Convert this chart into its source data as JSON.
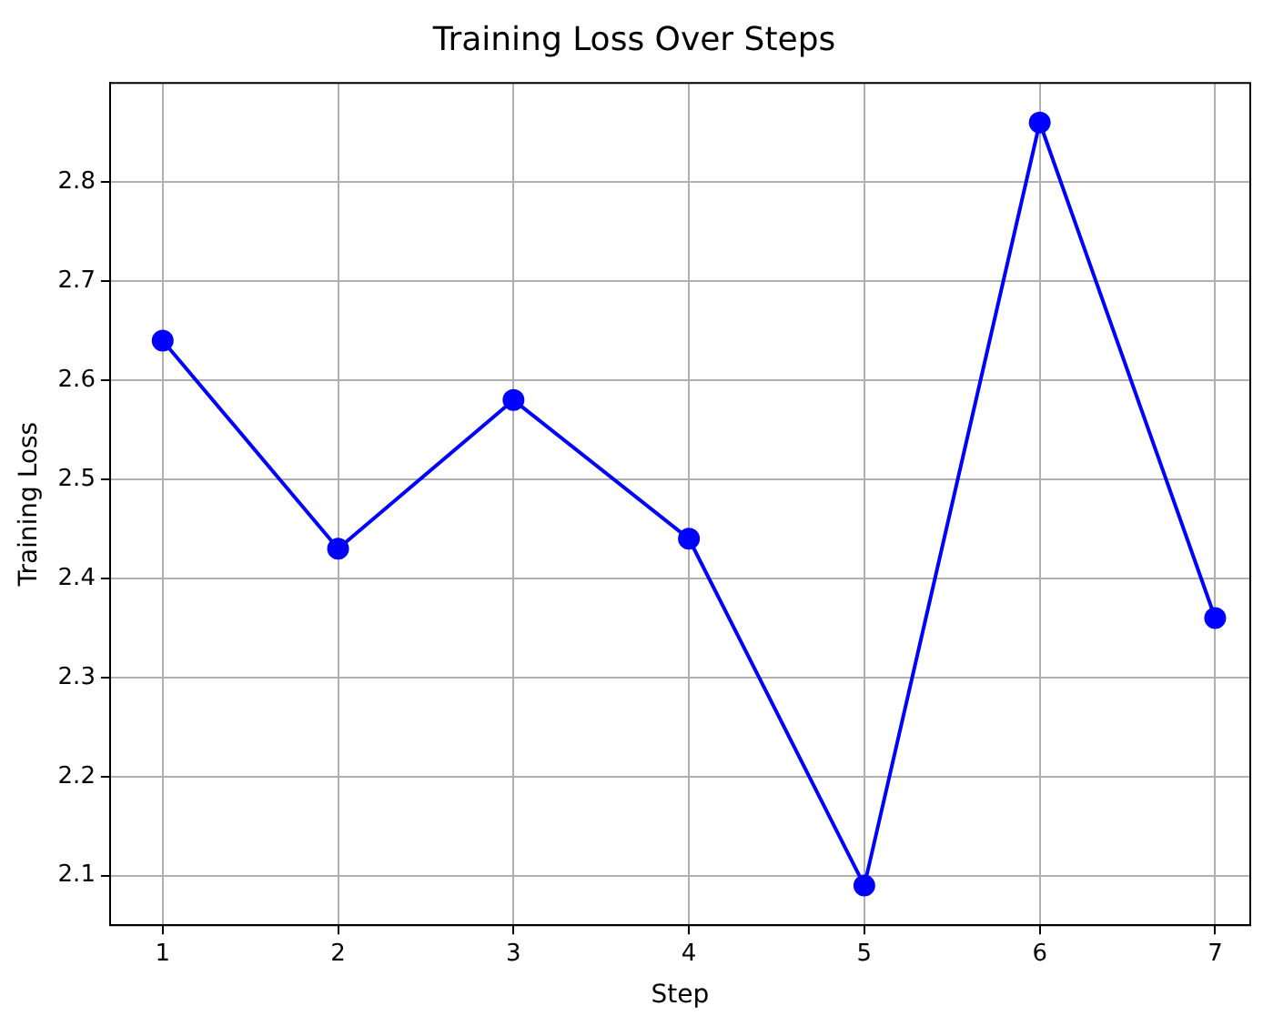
{
  "chart_data": {
    "type": "line",
    "title": "Training Loss Over Steps",
    "xlabel": "Step",
    "ylabel": "Training Loss",
    "x": [
      1,
      2,
      3,
      4,
      5,
      6,
      7
    ],
    "series": [
      {
        "color": "#0000ff",
        "values": [
          2.64,
          2.43,
          2.58,
          2.44,
          2.09,
          2.86,
          2.36
        ]
      }
    ],
    "xlim": [
      0.7,
      7.2
    ],
    "xticks": [
      1,
      2,
      3,
      4,
      5,
      6,
      7
    ],
    "ylim": [
      2.05,
      2.9
    ],
    "yticks": [
      2.1,
      2.2,
      2.3,
      2.4,
      2.5,
      2.6,
      2.7,
      2.8
    ],
    "grid": true,
    "marker": "circle",
    "line_style": "solid",
    "legend": false
  }
}
